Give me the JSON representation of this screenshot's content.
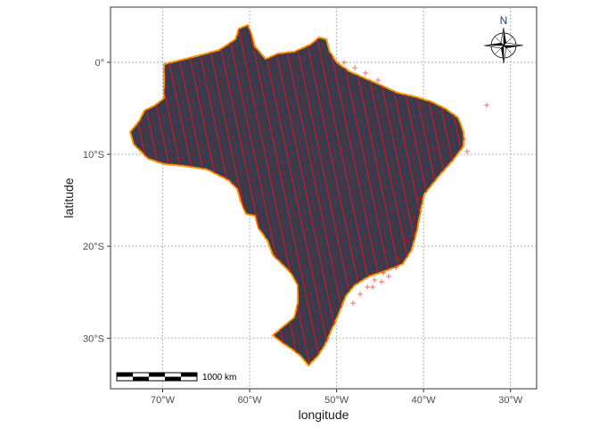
{
  "chart_data": {
    "type": "map",
    "xlabel": "longitude",
    "ylabel": "latitude",
    "x_ticks": [
      {
        "value": -70,
        "label": "70°W"
      },
      {
        "value": -60,
        "label": "60°W"
      },
      {
        "value": -50,
        "label": "50°W"
      },
      {
        "value": -40,
        "label": "40°W"
      },
      {
        "value": -30,
        "label": "30°W"
      }
    ],
    "y_ticks": [
      {
        "value": 0,
        "label": "0°"
      },
      {
        "value": -10,
        "label": "10°S"
      },
      {
        "value": -20,
        "label": "20°S"
      },
      {
        "value": -30,
        "label": "30°S"
      }
    ],
    "xlim": [
      -76,
      -27
    ],
    "ylim": [
      -35.5,
      6
    ],
    "grid": true,
    "scalebar_label": "1000 km",
    "north_label": "N",
    "colors": {
      "land_fill": "#2f3e50",
      "land_outline": "#ff9900",
      "points": "#ff0000",
      "grid": "#b3b3b3"
    }
  }
}
